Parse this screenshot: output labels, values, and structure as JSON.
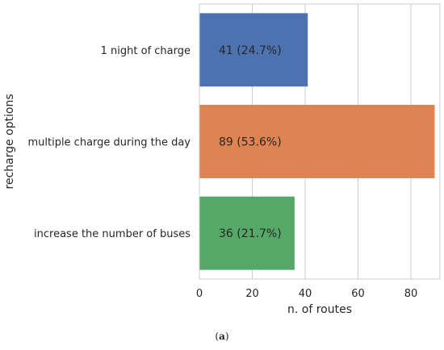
{
  "chart_data": {
    "type": "bar",
    "orientation": "horizontal",
    "categories": [
      "1 night of charge",
      "multiple charge during the day",
      "increase the number of buses"
    ],
    "values": [
      41,
      89,
      36
    ],
    "bar_labels": [
      "41 (24.7%)",
      "89 (53.6%)",
      "36 (21.7%)"
    ],
    "colors": [
      "#4c72b0",
      "#dd8452",
      "#55a868"
    ],
    "xlabel": "n. of routes",
    "ylabel": "recharge options",
    "xlim": [
      0,
      91
    ],
    "xticks": [
      0,
      20,
      40,
      60,
      80
    ],
    "grid": "vertical"
  },
  "caption": {
    "open": "(",
    "letter": "a",
    "close": ")"
  }
}
